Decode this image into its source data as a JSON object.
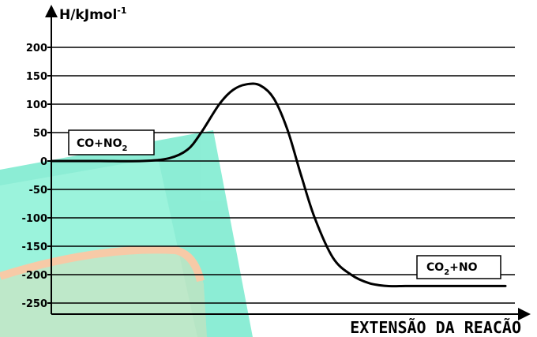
{
  "chart_data": {
    "type": "line",
    "ylabel": "H/kJmol",
    "ylabel_superscript": "-1",
    "xlabel": "EXTENSÃO DA REACÃO",
    "y_ticks": [
      200,
      150,
      100,
      50,
      0,
      -50,
      -100,
      -150,
      -200,
      -250
    ],
    "ylim": [
      -270,
      230
    ],
    "grid": true,
    "series": [
      {
        "x": [
          0,
          0.1,
          0.2,
          0.26,
          0.3,
          0.33,
          0.37,
          0.4,
          0.43,
          0.46,
          0.49,
          0.52,
          0.55,
          0.58,
          0.62,
          0.66,
          0.7,
          0.74,
          0.78,
          0.82,
          0.86,
          0.9,
          1.0
        ],
        "values": [
          0,
          0,
          0,
          5,
          20,
          50,
          100,
          125,
          135,
          133,
          110,
          55,
          -25,
          -100,
          -170,
          -200,
          -215,
          -220,
          -220,
          -220,
          -220,
          -220,
          -220
        ]
      }
    ],
    "annotations": [
      {
        "main": "CO+NO",
        "sub": "2",
        "tail": ""
      },
      {
        "main": "CO",
        "sub": "2",
        "tail": "+NO"
      }
    ],
    "colors": {
      "curve": "#000000",
      "grid": "#000000",
      "overlay": "#2fe0b4",
      "overlay_accent": "#f0b080"
    }
  }
}
